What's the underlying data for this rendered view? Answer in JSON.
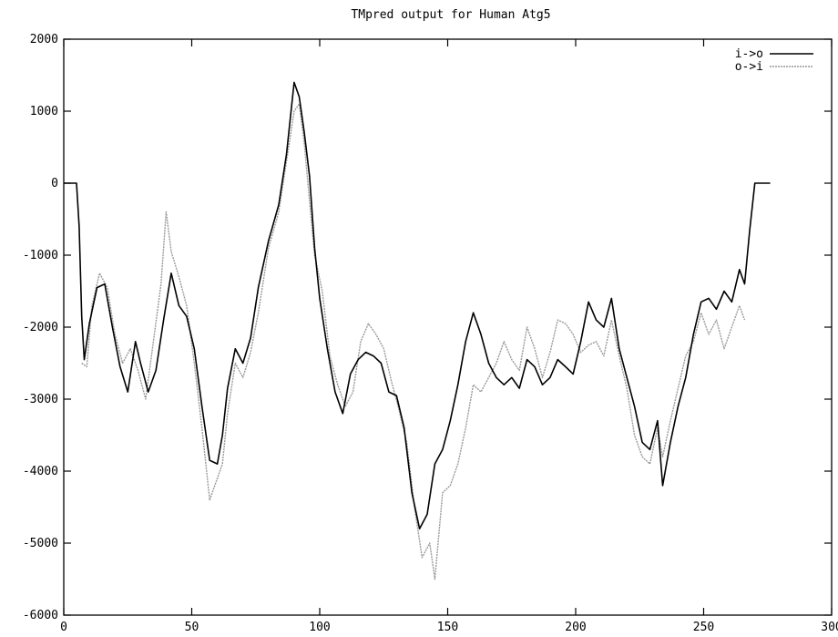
{
  "chart_data": {
    "type": "line",
    "title": "TMpred output for Human Atg5",
    "xlabel": "",
    "ylabel": "",
    "xlim": [
      0,
      300
    ],
    "ylim": [
      -6000,
      2000
    ],
    "xticks": [
      {
        "value": 0,
        "label": "0"
      },
      {
        "value": 50,
        "label": "50"
      },
      {
        "value": 100,
        "label": "100"
      },
      {
        "value": 150,
        "label": "150"
      },
      {
        "value": 200,
        "label": "200"
      },
      {
        "value": 250,
        "label": "250"
      },
      {
        "value": 300,
        "label": "300"
      }
    ],
    "yticks": [
      {
        "value": 2000,
        "label": "2000"
      },
      {
        "value": 1000,
        "label": "1000"
      },
      {
        "value": 0,
        "label": "0"
      },
      {
        "value": -1000,
        "label": "-1000"
      },
      {
        "value": -2000,
        "label": "-2000"
      },
      {
        "value": -3000,
        "label": "-3000"
      },
      {
        "value": -4000,
        "label": "-4000"
      },
      {
        "value": -5000,
        "label": "-5000"
      },
      {
        "value": -6000,
        "label": "-6000"
      }
    ],
    "grid": false,
    "legend_position": "top-right",
    "series": [
      {
        "name": "i->o",
        "color": "#000000",
        "style": "solid",
        "points": [
          [
            0,
            0
          ],
          [
            5,
            0
          ],
          [
            6,
            -600
          ],
          [
            7,
            -1850
          ],
          [
            8,
            -2450
          ],
          [
            10,
            -1950
          ],
          [
            13,
            -1450
          ],
          [
            16,
            -1400
          ],
          [
            19,
            -2000
          ],
          [
            22,
            -2550
          ],
          [
            25,
            -2900
          ],
          [
            28,
            -2200
          ],
          [
            30,
            -2500
          ],
          [
            33,
            -2900
          ],
          [
            36,
            -2600
          ],
          [
            39,
            -1900
          ],
          [
            42,
            -1250
          ],
          [
            45,
            -1700
          ],
          [
            48,
            -1850
          ],
          [
            51,
            -2300
          ],
          [
            54,
            -3100
          ],
          [
            57,
            -3850
          ],
          [
            60,
            -3900
          ],
          [
            62,
            -3500
          ],
          [
            64,
            -2850
          ],
          [
            67,
            -2300
          ],
          [
            70,
            -2500
          ],
          [
            73,
            -2150
          ],
          [
            76,
            -1450
          ],
          [
            80,
            -800
          ],
          [
            84,
            -300
          ],
          [
            87,
            400
          ],
          [
            90,
            1400
          ],
          [
            92,
            1200
          ],
          [
            94,
            700
          ],
          [
            96,
            100
          ],
          [
            98,
            -900
          ],
          [
            100,
            -1600
          ],
          [
            103,
            -2300
          ],
          [
            106,
            -2900
          ],
          [
            109,
            -3200
          ],
          [
            112,
            -2650
          ],
          [
            115,
            -2450
          ],
          [
            118,
            -2350
          ],
          [
            121,
            -2400
          ],
          [
            124,
            -2500
          ],
          [
            127,
            -2900
          ],
          [
            130,
            -2950
          ],
          [
            133,
            -3400
          ],
          [
            136,
            -4300
          ],
          [
            139,
            -4800
          ],
          [
            142,
            -4600
          ],
          [
            145,
            -3900
          ],
          [
            148,
            -3700
          ],
          [
            151,
            -3300
          ],
          [
            154,
            -2800
          ],
          [
            157,
            -2200
          ],
          [
            160,
            -1800
          ],
          [
            163,
            -2100
          ],
          [
            166,
            -2500
          ],
          [
            169,
            -2700
          ],
          [
            172,
            -2800
          ],
          [
            175,
            -2700
          ],
          [
            178,
            -2850
          ],
          [
            181,
            -2450
          ],
          [
            184,
            -2550
          ],
          [
            187,
            -2800
          ],
          [
            190,
            -2700
          ],
          [
            193,
            -2450
          ],
          [
            196,
            -2550
          ],
          [
            199,
            -2650
          ],
          [
            202,
            -2200
          ],
          [
            205,
            -1650
          ],
          [
            208,
            -1900
          ],
          [
            211,
            -2000
          ],
          [
            214,
            -1600
          ],
          [
            217,
            -2300
          ],
          [
            220,
            -2700
          ],
          [
            223,
            -3100
          ],
          [
            226,
            -3600
          ],
          [
            229,
            -3700
          ],
          [
            232,
            -3300
          ],
          [
            234,
            -4200
          ],
          [
            237,
            -3600
          ],
          [
            240,
            -3100
          ],
          [
            243,
            -2700
          ],
          [
            246,
            -2100
          ],
          [
            249,
            -1650
          ],
          [
            252,
            -1600
          ],
          [
            255,
            -1750
          ],
          [
            258,
            -1500
          ],
          [
            261,
            -1650
          ],
          [
            264,
            -1200
          ],
          [
            266,
            -1400
          ],
          [
            268,
            -650
          ],
          [
            270,
            0
          ],
          [
            276,
            0
          ]
        ]
      },
      {
        "name": "o->i",
        "color": "#999999",
        "style": "dotted",
        "points": [
          [
            7,
            -2500
          ],
          [
            9,
            -2550
          ],
          [
            11,
            -1700
          ],
          [
            14,
            -1250
          ],
          [
            17,
            -1450
          ],
          [
            20,
            -2100
          ],
          [
            23,
            -2500
          ],
          [
            26,
            -2300
          ],
          [
            29,
            -2600
          ],
          [
            32,
            -3000
          ],
          [
            35,
            -2200
          ],
          [
            38,
            -1400
          ],
          [
            40,
            -400
          ],
          [
            42,
            -950
          ],
          [
            45,
            -1300
          ],
          [
            48,
            -1700
          ],
          [
            51,
            -2500
          ],
          [
            54,
            -3400
          ],
          [
            57,
            -4400
          ],
          [
            60,
            -4100
          ],
          [
            62,
            -3900
          ],
          [
            64,
            -3200
          ],
          [
            67,
            -2500
          ],
          [
            70,
            -2700
          ],
          [
            73,
            -2350
          ],
          [
            76,
            -1800
          ],
          [
            80,
            -900
          ],
          [
            84,
            -400
          ],
          [
            87,
            300
          ],
          [
            90,
            1000
          ],
          [
            92,
            1100
          ],
          [
            94,
            550
          ],
          [
            96,
            -250
          ],
          [
            98,
            -1000
          ],
          [
            101,
            -1500
          ],
          [
            104,
            -2400
          ],
          [
            107,
            -2800
          ],
          [
            110,
            -3100
          ],
          [
            113,
            -2900
          ],
          [
            116,
            -2200
          ],
          [
            119,
            -1950
          ],
          [
            122,
            -2100
          ],
          [
            125,
            -2300
          ],
          [
            128,
            -2750
          ],
          [
            131,
            -3150
          ],
          [
            134,
            -3600
          ],
          [
            137,
            -4500
          ],
          [
            140,
            -5200
          ],
          [
            143,
            -5000
          ],
          [
            145,
            -5500
          ],
          [
            148,
            -4300
          ],
          [
            151,
            -4200
          ],
          [
            154,
            -3900
          ],
          [
            157,
            -3400
          ],
          [
            160,
            -2800
          ],
          [
            163,
            -2900
          ],
          [
            166,
            -2700
          ],
          [
            169,
            -2500
          ],
          [
            172,
            -2200
          ],
          [
            175,
            -2450
          ],
          [
            178,
            -2600
          ],
          [
            181,
            -2000
          ],
          [
            184,
            -2300
          ],
          [
            187,
            -2700
          ],
          [
            190,
            -2350
          ],
          [
            193,
            -1900
          ],
          [
            196,
            -1950
          ],
          [
            199,
            -2100
          ],
          [
            202,
            -2350
          ],
          [
            205,
            -2250
          ],
          [
            208,
            -2200
          ],
          [
            211,
            -2400
          ],
          [
            214,
            -1900
          ],
          [
            217,
            -2400
          ],
          [
            220,
            -2850
          ],
          [
            223,
            -3500
          ],
          [
            226,
            -3800
          ],
          [
            229,
            -3900
          ],
          [
            232,
            -3400
          ],
          [
            234,
            -3800
          ],
          [
            237,
            -3300
          ],
          [
            240,
            -2850
          ],
          [
            243,
            -2400
          ],
          [
            246,
            -2200
          ],
          [
            249,
            -1800
          ],
          [
            252,
            -2100
          ],
          [
            255,
            -1900
          ],
          [
            258,
            -2300
          ],
          [
            261,
            -2000
          ],
          [
            264,
            -1700
          ],
          [
            266,
            -1900
          ]
        ]
      }
    ]
  }
}
